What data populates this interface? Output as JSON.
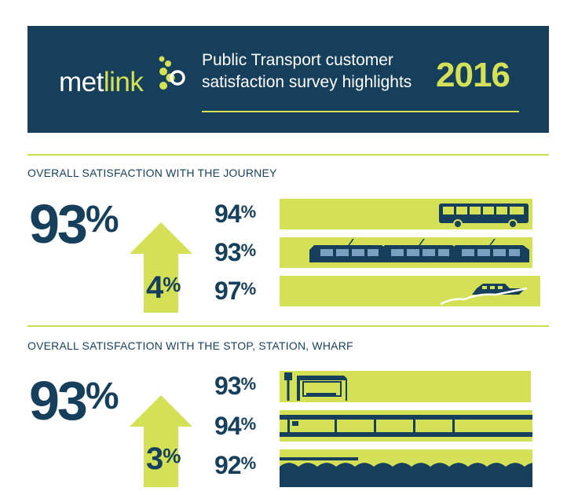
{
  "header": {
    "logo_prefix": "met",
    "logo_suffix": "link",
    "title_line1": "Public Transport customer",
    "title_line2": "satisfaction survey highlights",
    "year": "2016"
  },
  "colors": {
    "navy": "#163f5c",
    "lime": "#d4e157",
    "white": "#ffffff"
  },
  "journey": {
    "heading": "OVERALL SATISFACTION WITH THE JOURNEY",
    "overall": "93",
    "increase": "4",
    "modes": [
      {
        "label": "bus",
        "value": "94",
        "icon": "bus-icon"
      },
      {
        "label": "train",
        "value": "93",
        "icon": "train-icon"
      },
      {
        "label": "ferry",
        "value": "97",
        "icon": "ferry-icon"
      }
    ]
  },
  "stop": {
    "heading": "OVERALL SATISFACTION WITH THE STOP, STATION, WHARF",
    "overall": "93",
    "increase": "3",
    "modes": [
      {
        "label": "bus stop",
        "value": "93",
        "icon": "bus-shelter-icon"
      },
      {
        "label": "station",
        "value": "94",
        "icon": "train-station-icon"
      },
      {
        "label": "wharf",
        "value": "92",
        "icon": "wharf-icon"
      }
    ]
  },
  "pct_sign": "%"
}
